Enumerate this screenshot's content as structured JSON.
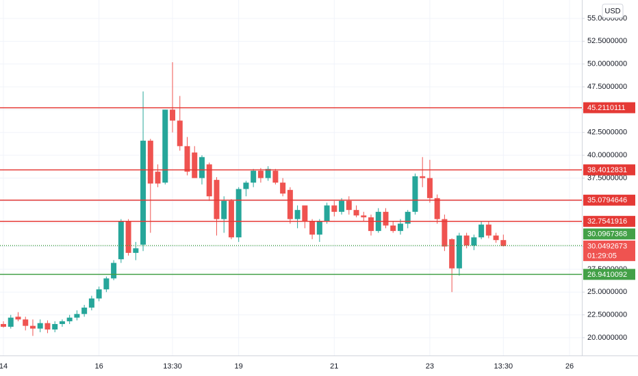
{
  "chart_data": {
    "type": "candlestick",
    "currency": "USD",
    "categories": [
      "14",
      null,
      null,
      null,
      null,
      null,
      null,
      null,
      null,
      null,
      null,
      null,
      null,
      "16",
      null,
      null,
      null,
      null,
      null,
      null,
      null,
      null,
      null,
      "13:30",
      null,
      null,
      null,
      null,
      null,
      null,
      null,
      null,
      "19",
      null,
      null,
      null,
      null,
      null,
      null,
      null,
      null,
      null,
      null,
      null,
      null,
      "21",
      null,
      null,
      null,
      null,
      null,
      null,
      null,
      null,
      null,
      null,
      null,
      null,
      "23",
      null,
      null,
      null,
      null,
      null,
      null,
      null,
      null,
      null,
      "13:30",
      null,
      null,
      null,
      null,
      null,
      null,
      null,
      null,
      "26"
    ],
    "open": [
      21.5,
      21.2,
      22.3,
      22.0,
      21.3,
      21.0,
      21.6,
      20.9,
      21.5,
      21.8,
      22.2,
      22.6,
      23.3,
      24.3,
      25.3,
      26.5,
      28.6,
      32.7,
      29.3,
      30.2,
      41.6,
      38.2,
      37.0,
      45.0,
      43.8,
      41.0,
      40.3,
      37.5,
      39.0,
      37.3,
      33.0,
      35.0,
      31.0,
      36.3,
      37.0,
      38.3,
      37.5,
      38.3,
      37.0,
      36.2,
      33.0,
      34.5,
      32.7,
      31.3,
      32.8,
      34.5,
      33.8,
      35.0,
      34.0,
      33.4,
      33.2,
      31.7,
      33.8,
      32.3,
      31.7,
      32.5,
      33.8,
      37.7,
      37.5,
      35.3,
      33.0,
      30.8,
      27.6,
      31.2,
      30.1,
      31.0,
      32.4,
      31.2,
      30.7,
      null,
      null,
      null,
      null,
      null,
      null,
      null,
      null,
      null
    ],
    "high": [
      21.8,
      22.5,
      22.8,
      22.3,
      22.0,
      22.0,
      21.9,
      21.8,
      22.0,
      22.5,
      23.0,
      23.6,
      24.6,
      25.6,
      26.7,
      28.5,
      33.0,
      33.0,
      30.5,
      47.0,
      41.8,
      39.0,
      45.0,
      50.2,
      46.5,
      42.0,
      41.0,
      40.0,
      39.2,
      37.6,
      35.5,
      35.2,
      36.5,
      37.2,
      38.5,
      38.6,
      38.8,
      38.5,
      37.5,
      36.5,
      34.5,
      34.5,
      33.0,
      33.0,
      34.8,
      35.0,
      35.3,
      35.5,
      34.5,
      33.8,
      33.5,
      34.2,
      34.2,
      32.7,
      33.0,
      34.0,
      38.0,
      39.8,
      39.5,
      35.7,
      33.5,
      30.9,
      31.5,
      31.5,
      31.3,
      32.7,
      32.7,
      31.5,
      31.3,
      null,
      null,
      null,
      null,
      null,
      null,
      null,
      null,
      null
    ],
    "low": [
      21.1,
      21.0,
      21.8,
      20.8,
      20.2,
      20.6,
      20.5,
      20.6,
      21.2,
      21.5,
      21.9,
      22.3,
      23.0,
      24.0,
      25.0,
      26.3,
      28.2,
      29.0,
      28.5,
      29.5,
      31.5,
      36.5,
      36.8,
      42.5,
      40.5,
      37.8,
      37.5,
      36.8,
      35.0,
      31.2,
      31.5,
      30.8,
      30.5,
      35.5,
      36.5,
      37.0,
      37.2,
      36.8,
      35.5,
      32.5,
      32.0,
      32.0,
      30.8,
      30.5,
      32.5,
      33.3,
      33.5,
      33.5,
      33.2,
      32.8,
      31.2,
      31.5,
      32.0,
      31.5,
      31.3,
      32.0,
      33.5,
      36.5,
      34.8,
      32.5,
      29.5,
      25.0,
      26.8,
      29.8,
      29.6,
      30.8,
      30.9,
      30.4,
      30.0,
      null,
      null,
      null,
      null,
      null,
      null,
      null,
      null,
      null
    ],
    "close": [
      21.2,
      22.2,
      22.0,
      21.3,
      21.0,
      21.6,
      20.9,
      21.5,
      21.8,
      22.2,
      22.6,
      23.3,
      24.3,
      25.3,
      26.5,
      28.2,
      32.7,
      29.3,
      29.8,
      41.6,
      36.9,
      36.9,
      45.0,
      43.8,
      41.0,
      38.2,
      37.5,
      39.8,
      35.5,
      33.0,
      35.0,
      31.0,
      36.3,
      37.0,
      38.3,
      37.5,
      38.5,
      37.0,
      35.8,
      33.0,
      34.0,
      32.7,
      31.3,
      32.8,
      34.5,
      33.8,
      35.0,
      34.0,
      33.4,
      33.2,
      31.7,
      33.8,
      32.3,
      31.7,
      32.5,
      33.8,
      37.7,
      37.5,
      35.3,
      33.0,
      30.0,
      27.6,
      31.2,
      30.1,
      31.0,
      32.4,
      31.2,
      30.7,
      30.05,
      null,
      null,
      null,
      null,
      null,
      null,
      null,
      null,
      null
    ],
    "up_color": "#26a69a",
    "down_color": "#ef5350",
    "ylim": [
      18.05,
      57.02
    ],
    "yticks": [
      {
        "value": 20,
        "label": "20.0000000"
      },
      {
        "value": 22.5,
        "label": "22.5000000"
      },
      {
        "value": 25,
        "label": "25.0000000"
      },
      {
        "value": 27.5,
        "label": "27.5000000"
      },
      {
        "value": 30,
        "label": "30.0000000"
      },
      {
        "value": 32.5,
        "label": "32.5000000"
      },
      {
        "value": 35,
        "label": "35.0000000"
      },
      {
        "value": 37.5,
        "label": "37.5000000"
      },
      {
        "value": 40,
        "label": "40.0000000"
      },
      {
        "value": 42.5,
        "label": "42.5000000"
      },
      {
        "value": 45,
        "label": "45.0000000"
      },
      {
        "value": 47.5,
        "label": "47.5000000"
      },
      {
        "value": 50,
        "label": "50.0000000"
      },
      {
        "value": 52.5,
        "label": "52.5000000"
      },
      {
        "value": 55,
        "label": "55.0000000"
      }
    ],
    "grid": true,
    "hlines": [
      {
        "value": 45.2110111,
        "color": "#e53935",
        "style": "solid"
      },
      {
        "value": 38.4012831,
        "color": "#e53935",
        "style": "solid"
      },
      {
        "value": 35.0794646,
        "color": "#e53935",
        "style": "solid"
      },
      {
        "value": 32.7541916,
        "color": "#e53935",
        "style": "solid"
      },
      {
        "value": 30.0967368,
        "color": "#43a047",
        "style": "dotted"
      },
      {
        "value": 26.9410092,
        "color": "#43a047",
        "style": "solid"
      }
    ],
    "last_price": {
      "value": 30.0492673,
      "countdown": "01:29:05",
      "color": "#ef5350"
    }
  }
}
